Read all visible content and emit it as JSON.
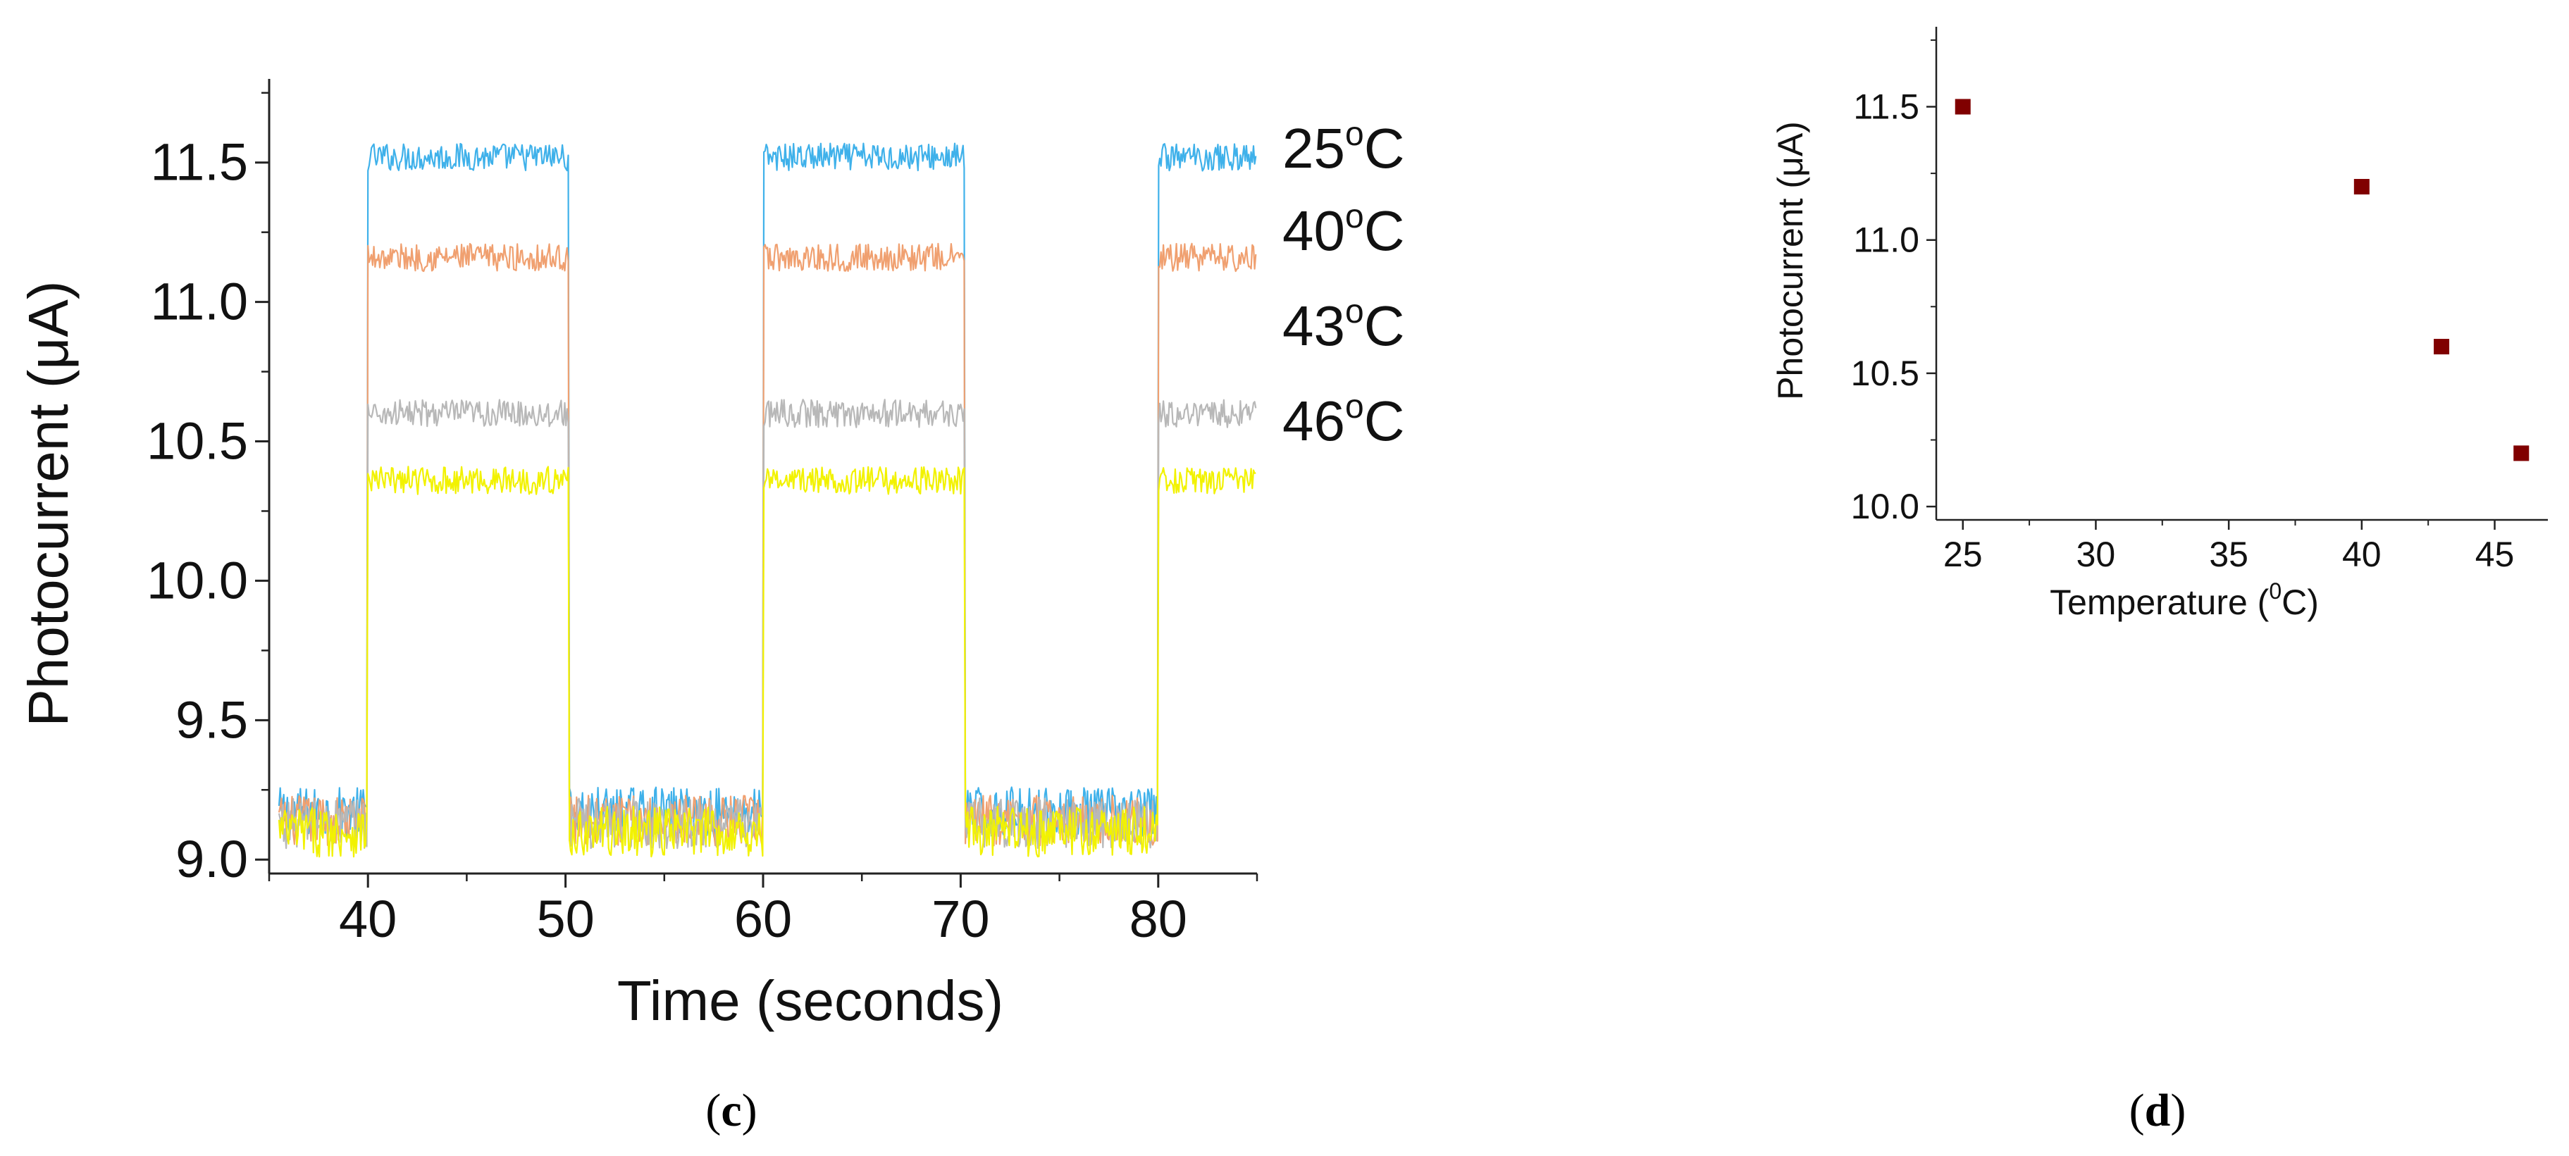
{
  "chart_data": [
    {
      "panel": "(c)",
      "type": "line",
      "xlabel": "Time (seconds)",
      "ylabel": "Photocurrent (μA)",
      "xlim": [
        35,
        85
      ],
      "ylim": [
        8.95,
        11.8
      ],
      "xticks": [
        40,
        50,
        60,
        70,
        80
      ],
      "xtick_labels": [
        "40",
        "50",
        "60",
        "70",
        "80"
      ],
      "yticks": [
        9.0,
        9.5,
        10.0,
        10.5,
        11.0,
        11.5
      ],
      "ytick_labels": [
        "9.0",
        "9.5",
        "10.0",
        "10.5",
        "11.0",
        "11.5"
      ],
      "grid": false,
      "legend_placement": "right",
      "light_on_intervals": [
        [
          40,
          50.2
        ],
        [
          60,
          70.2
        ],
        [
          80,
          85
        ]
      ],
      "off_level": 9.15,
      "series": [
        {
          "name": "25oC",
          "label_base": "25",
          "label_sup": "o",
          "label_unit": "C",
          "on_level": 11.52,
          "off_level": 9.17,
          "color": "#3fb1ea"
        },
        {
          "name": "40oC",
          "label_base": "40",
          "label_sup": "o",
          "label_unit": "C",
          "on_level": 11.16,
          "off_level": 9.14,
          "color": "#f0a070"
        },
        {
          "name": "43oC",
          "label_base": "43",
          "label_sup": "o",
          "label_unit": "C",
          "on_level": 10.6,
          "off_level": 9.13,
          "color": "#b8b8b8"
        },
        {
          "name": "46oC",
          "label_base": "46",
          "label_sup": "o",
          "label_unit": "C",
          "on_level": 10.36,
          "off_level": 9.1,
          "color": "#f2f200"
        }
      ]
    },
    {
      "panel": "(d)",
      "type": "scatter",
      "xlabel_prefix": "Temperature (",
      "xlabel_sup": "0",
      "xlabel_suffix": "C)",
      "ylabel": "Photocurrent (μA)",
      "xlim": [
        24,
        47
      ],
      "ylim": [
        9.95,
        11.8
      ],
      "xticks": [
        25,
        30,
        35,
        40,
        45
      ],
      "xtick_labels": [
        "25",
        "30",
        "35",
        "40",
        "45"
      ],
      "yticks": [
        10.0,
        10.5,
        11.0,
        11.5
      ],
      "ytick_labels": [
        "10.0",
        "10.5",
        "11.0",
        "11.5"
      ],
      "grid": false,
      "marker": "square",
      "marker_color": "#800000",
      "x": [
        25,
        40,
        43,
        46
      ],
      "y": [
        11.5,
        11.2,
        10.6,
        10.2
      ]
    }
  ],
  "captions": {
    "c": "c",
    "d": "d"
  }
}
